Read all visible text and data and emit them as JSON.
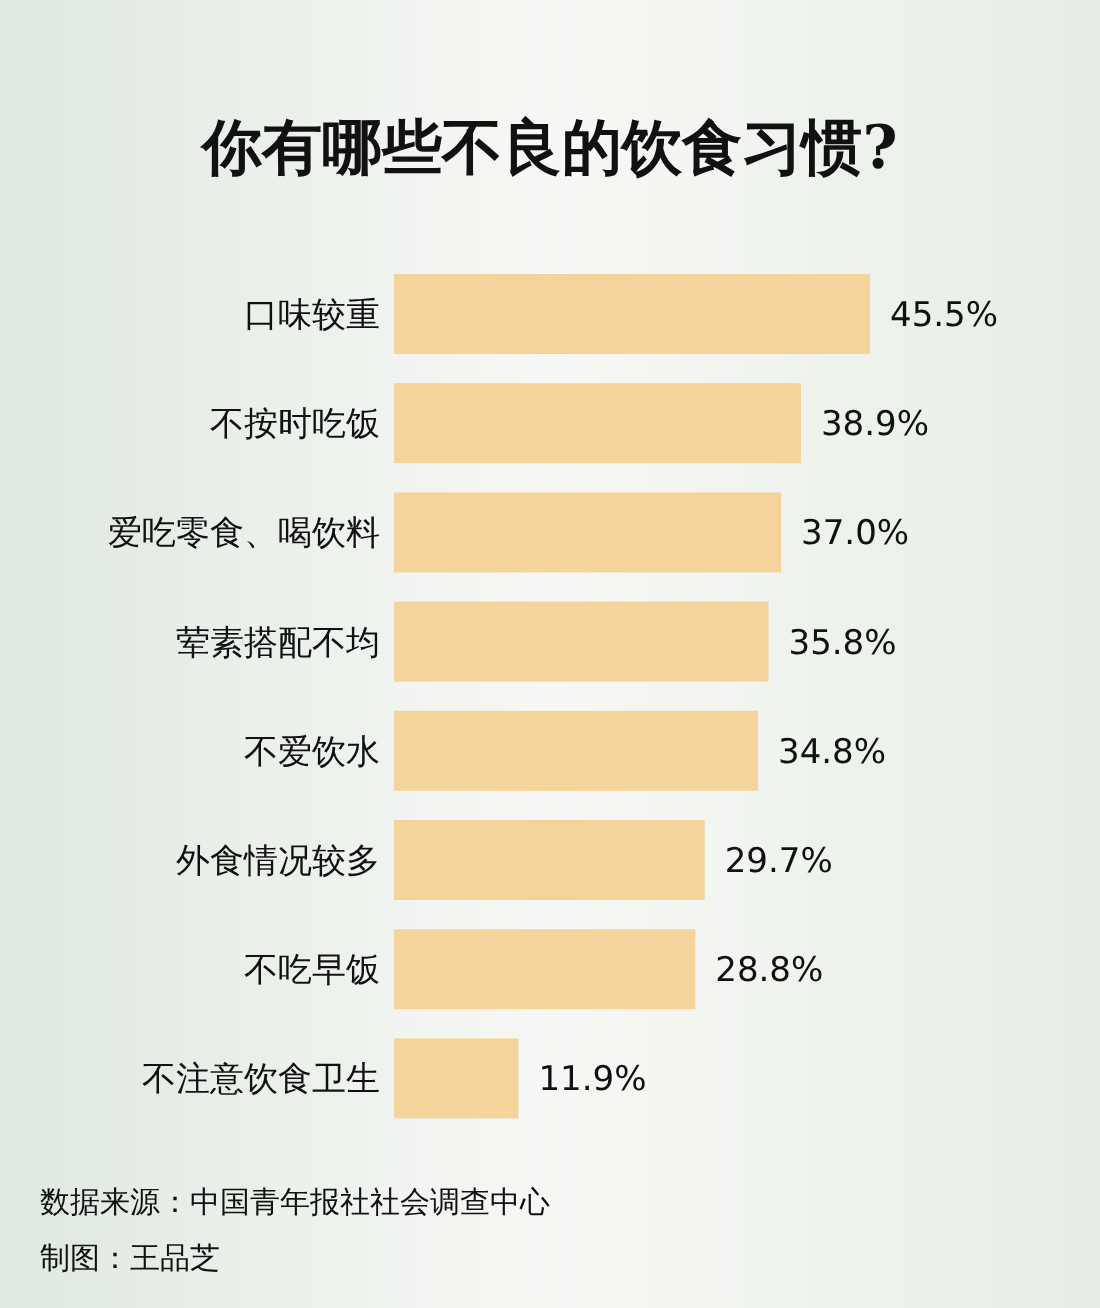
{
  "chart_data": {
    "type": "bar",
    "orientation": "horizontal",
    "title": "你有哪些不良的饮食习惯?",
    "categories": [
      "口味较重",
      "不按时吃饭",
      "爱吃零食、喝饮料",
      "荤素搭配不均",
      "不爱饮水",
      "外食情况较多",
      "不吃早饭",
      "不注意饮食卫生"
    ],
    "values": [
      45.5,
      38.9,
      37.0,
      35.8,
      34.8,
      29.7,
      28.8,
      11.9
    ],
    "value_labels": [
      "45.5%",
      "38.9%",
      "37.0%",
      "35.8%",
      "34.8%",
      "29.7%",
      "28.8%",
      "11.9%"
    ],
    "color": "#f5d49b",
    "annotations": [
      "数据来源：中国青年报社社会调查中心",
      "制图：王品芝"
    ]
  }
}
